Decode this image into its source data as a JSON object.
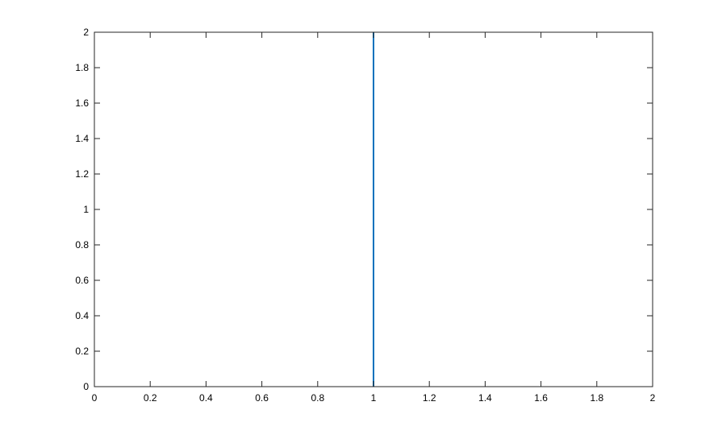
{
  "chart_data": {
    "type": "line",
    "title": "",
    "xlabel": "",
    "ylabel": "",
    "xlim": [
      0,
      2
    ],
    "ylim": [
      0,
      2
    ],
    "xticks": [
      "0",
      "0.2",
      "0.4",
      "0.6",
      "0.8",
      "1",
      "1.2",
      "1.4",
      "1.6",
      "1.8",
      "2"
    ],
    "yticks": [
      "0",
      "0.2",
      "0.4",
      "0.6",
      "0.8",
      "1",
      "1.2",
      "1.4",
      "1.6",
      "1.8",
      "2"
    ],
    "grid": false,
    "box": true,
    "series": [
      {
        "x": [
          1,
          1
        ],
        "y": [
          0,
          2
        ],
        "color": "#0072BD"
      }
    ]
  }
}
